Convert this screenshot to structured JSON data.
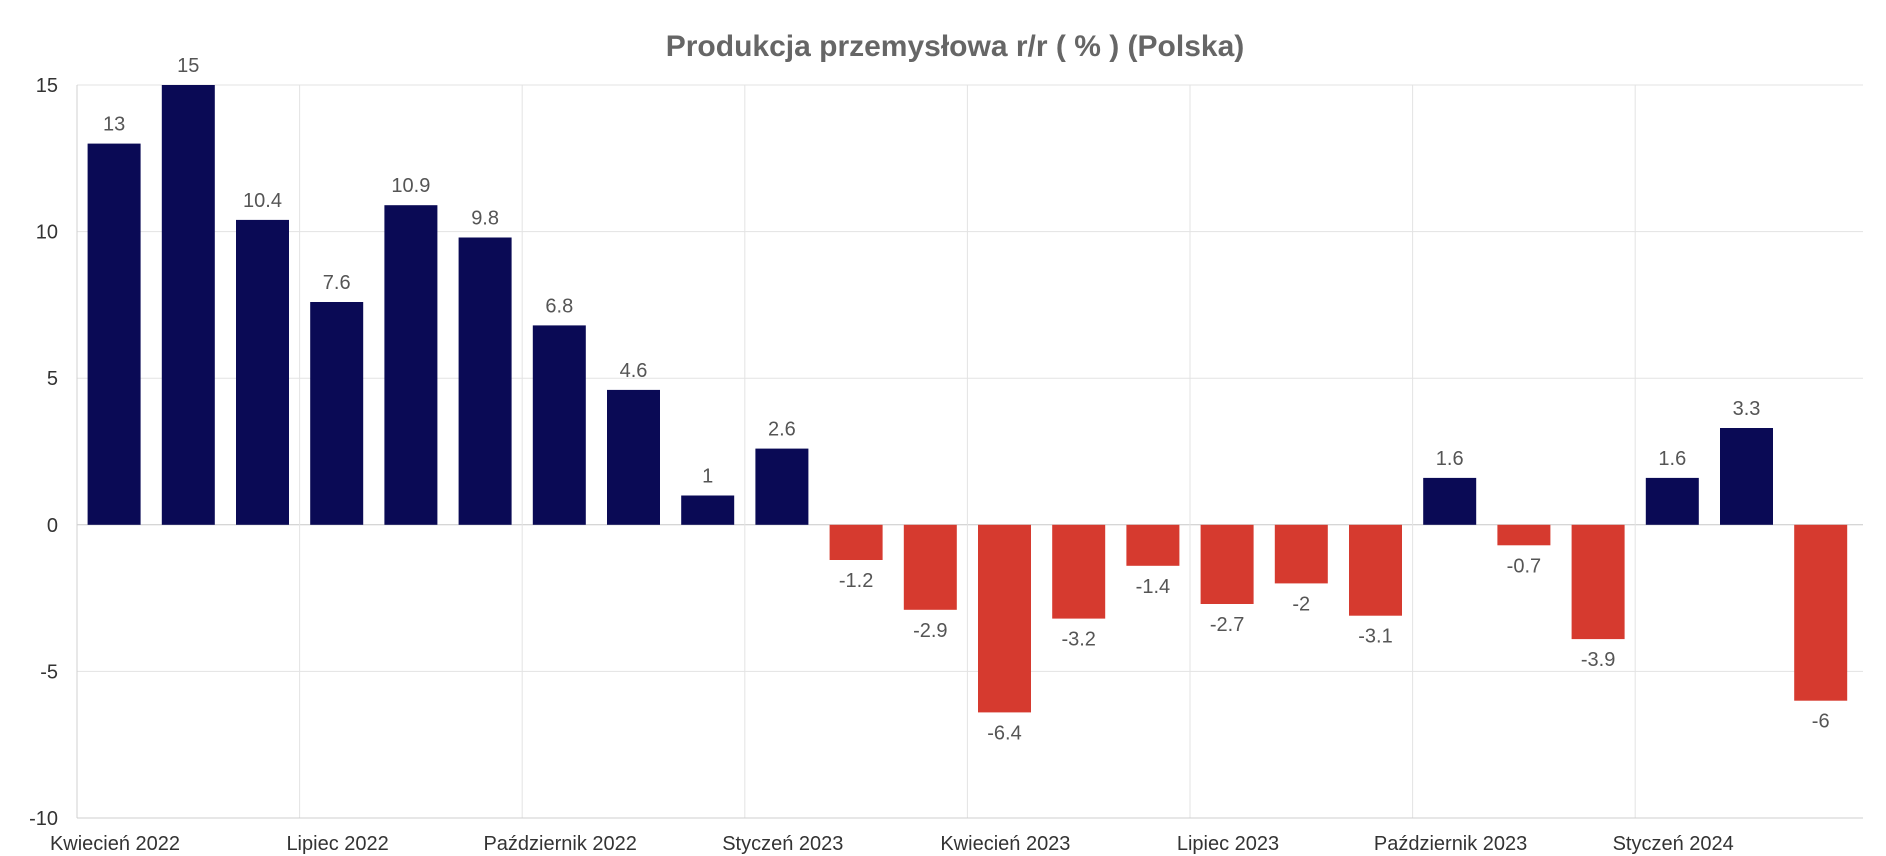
{
  "chart_data": {
    "type": "bar",
    "title": "Produkcja przemysłowa r/r ( % ) (Polska)",
    "xlabel": "",
    "ylabel": "",
    "categories": [
      "2022-04",
      "2022-05",
      "2022-06",
      "2022-07",
      "2022-08",
      "2022-09",
      "2022-10",
      "2022-11",
      "2022-12",
      "2023-01",
      "2023-02",
      "2023-03",
      "2023-04",
      "2023-05",
      "2023-06",
      "2023-07",
      "2023-08",
      "2023-09",
      "2023-10",
      "2023-11",
      "2023-12",
      "2024-01",
      "2024-02",
      "2024-03"
    ],
    "values": [
      13,
      15,
      10.4,
      7.6,
      10.9,
      9.8,
      6.8,
      4.6,
      1,
      2.6,
      -1.2,
      -2.9,
      -6.4,
      -3.2,
      -1.4,
      -2.7,
      -2,
      -3.1,
      1.6,
      -0.7,
      -3.9,
      1.6,
      3.3,
      -6
    ],
    "x_tick_labels": [
      {
        "category": "2022-04",
        "label": "Kwiecień 2022"
      },
      {
        "category": "2022-07",
        "label": "Lipiec 2022"
      },
      {
        "category": "2022-10",
        "label": "Październik 2022"
      },
      {
        "category": "2023-01",
        "label": "Styczeń 2023"
      },
      {
        "category": "2023-04",
        "label": "Kwiecień 2023"
      },
      {
        "category": "2023-07",
        "label": "Lipiec 2023"
      },
      {
        "category": "2023-10",
        "label": "Październik 2023"
      },
      {
        "category": "2024-01",
        "label": "Styczeń 2024"
      }
    ],
    "y_ticks": [
      15,
      10,
      5,
      0,
      -5,
      -10
    ],
    "ylim": [
      -10,
      15
    ],
    "grid": true,
    "data_labels": true,
    "legend": "none",
    "colors": {
      "positive": "#0a0a55",
      "negative": "#d63a2f",
      "grid": "#e3e3e3",
      "zero_line": "#c8c8c8",
      "title": "#666666",
      "tick_text": "#333333",
      "label_text": "#555555"
    }
  }
}
